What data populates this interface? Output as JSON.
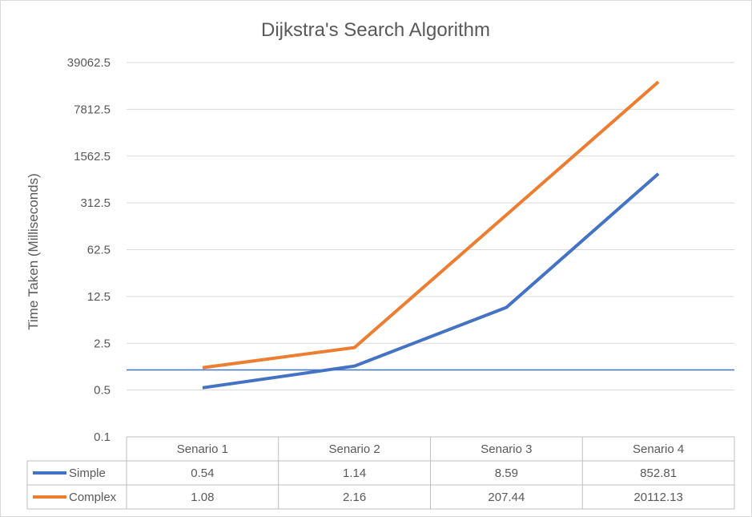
{
  "chart_data": {
    "type": "line",
    "title": "Dijkstra's Search Algorithm",
    "ylabel": "Time Taken (Milliseconds)",
    "xlabel": "",
    "y_scale": "log5",
    "ylim": [
      0.1,
      39062.5
    ],
    "y_ticks": [
      "0.1",
      "0.5",
      "2.5",
      "12.5",
      "62.5",
      "312.5",
      "1562.5",
      "7812.5",
      "39062.5"
    ],
    "y_tick_values": [
      0.1,
      0.5,
      2.5,
      12.5,
      62.5,
      312.5,
      1562.5,
      7812.5,
      39062.5
    ],
    "categories": [
      "Senario 1",
      "Senario 2",
      "Senario 3",
      "Senario 4"
    ],
    "series": [
      {
        "name": "Simple",
        "color": "#4472c4",
        "values": [
          0.54,
          1.14,
          8.59,
          852.81
        ],
        "labels": [
          "0.54",
          "1.14",
          "8.59",
          "852.81"
        ]
      },
      {
        "name": "Complex",
        "color": "#ed7d31",
        "values": [
          1.08,
          2.16,
          207.44,
          20112.13
        ],
        "labels": [
          "1.08",
          "2.16",
          "207.44",
          "20112.13"
        ]
      }
    ],
    "reference_line": {
      "value": 1.0,
      "color": "#4472c4"
    },
    "grid": true,
    "legend": "data-table"
  }
}
